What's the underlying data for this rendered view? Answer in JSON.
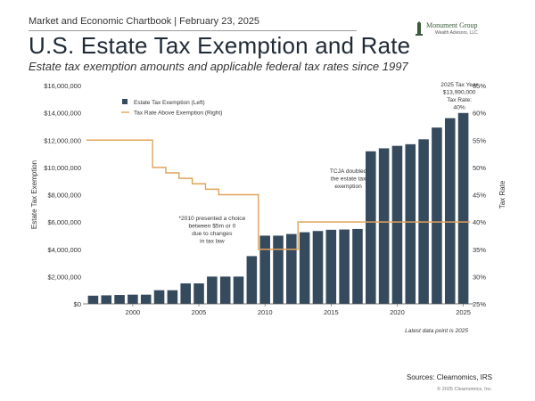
{
  "header": {
    "top_line": "Market and Economic Chartbook | February 23, 2025",
    "title": "U.S. Estate Tax Exemption and Rate",
    "subtitle": "Estate tax exemption amounts and applicable federal tax rates since 1997"
  },
  "logo": {
    "name": "Monument Group",
    "sub": "Wealth Advisors, LLC"
  },
  "footer": {
    "note": "Latest data point is 2025",
    "sources": "Sources: Clearnomics, IRS",
    "copyright": "© 2025 Clearnomics, Inc."
  },
  "colors": {
    "bar": "#364a5e",
    "line": "#e0a35a",
    "title": "#1f2a36"
  },
  "chart_data": {
    "type": "bar",
    "x_type": "year",
    "x": [
      1997,
      1998,
      1999,
      2000,
      2001,
      2002,
      2003,
      2004,
      2005,
      2006,
      2007,
      2008,
      2009,
      2010,
      2011,
      2012,
      2013,
      2014,
      2015,
      2016,
      2017,
      2018,
      2019,
      2020,
      2021,
      2022,
      2023,
      2024,
      2025
    ],
    "x_ticks": [
      "2000",
      "2005",
      "2010",
      "2015",
      "2020",
      "2025"
    ],
    "x_tick_values": [
      2000,
      2005,
      2010,
      2015,
      2020,
      2025
    ],
    "series": [
      {
        "name": "Estate Tax Exemption (Left)",
        "kind": "bar",
        "axis": "left",
        "values": [
          600000,
          625000,
          650000,
          675000,
          675000,
          1000000,
          1000000,
          1500000,
          1500000,
          2000000,
          2000000,
          2000000,
          3500000,
          5000000,
          5000000,
          5120000,
          5250000,
          5340000,
          5430000,
          5450000,
          5490000,
          11180000,
          11400000,
          11580000,
          11700000,
          12060000,
          12920000,
          13610000,
          13990000
        ]
      },
      {
        "name": "Tax Rate Above Exemption (Right)",
        "kind": "step-line",
        "axis": "right",
        "values": [
          55,
          55,
          55,
          55,
          55,
          50,
          49,
          48,
          47,
          46,
          45,
          45,
          45,
          35,
          35,
          35,
          40,
          40,
          40,
          40,
          40,
          40,
          40,
          40,
          40,
          40,
          40,
          40,
          40
        ]
      }
    ],
    "y_left": {
      "label": "Estate Tax Exemption",
      "range": [
        0,
        16000000
      ],
      "ticks": [
        "$0",
        "$2,000,000",
        "$4,000,000",
        "$6,000,000",
        "$8,000,000",
        "$10,000,000",
        "$12,000,000",
        "$14,000,000",
        "$16,000,000"
      ],
      "tick_values": [
        0,
        2000000,
        4000000,
        6000000,
        8000000,
        10000000,
        12000000,
        14000000,
        16000000
      ]
    },
    "y_right": {
      "label": "Tax Rate",
      "range": [
        25,
        65
      ],
      "ticks": [
        "25%",
        "30%",
        "35%",
        "40%",
        "45%",
        "50%",
        "55%",
        "60%",
        "65%"
      ],
      "tick_values": [
        25,
        30,
        35,
        40,
        45,
        50,
        55,
        60,
        65
      ]
    },
    "grid": false,
    "legend_placement": "top-left",
    "annotations": [
      {
        "id": "note-2010",
        "lines": [
          "*2010 presented a choice",
          "between $5m or 0",
          "due to changes",
          "in tax law"
        ],
        "x": 2006.0,
        "y": 6150000
      },
      {
        "id": "note-tcja",
        "lines": [
          "TCJA doubled",
          "the estate tax",
          "exemption"
        ],
        "x": 2016.3,
        "y": 9600000
      },
      {
        "id": "note-2025",
        "lines": [
          "2025 Tax Year",
          "$13,990,000",
          "Tax Rate:",
          "40%"
        ],
        "x": 2024.7,
        "y": 15950000
      }
    ]
  }
}
